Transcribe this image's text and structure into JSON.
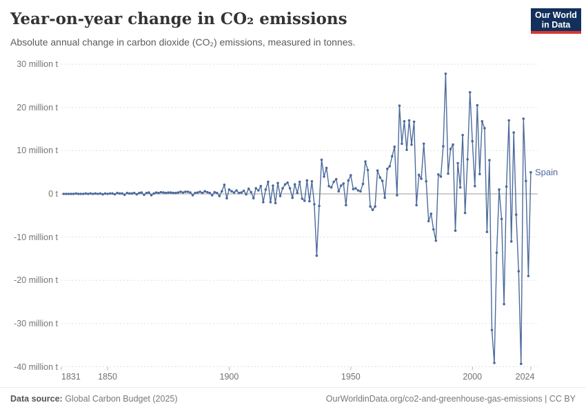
{
  "header": {
    "title": "Year-on-year change in CO₂ emissions",
    "subtitle": "Absolute annual change in carbon dioxide (CO₂) emissions, measured in tonnes.",
    "logo_line1": "Our World",
    "logo_line2": "in Data"
  },
  "footer": {
    "source_label": "Data source:",
    "source_text": " Global Carbon Budget (2025)",
    "link_text": "OurWorldinData.org/co2-and-greenhouse-gas-emissions | CC BY"
  },
  "chart_data": {
    "type": "line",
    "title": "Year-on-year change in CO₂ emissions",
    "entity": "Spain",
    "unit": "tonnes",
    "line_color": "#4c6a9c",
    "grid_color": "#dedede",
    "zero_line_color": "#9e9e9e",
    "legend_position": "right-of-last-point",
    "grid": true,
    "x_label": "",
    "y_label": "",
    "xlim": [
      1831,
      2025
    ],
    "ylim": [
      -40000000,
      30000000
    ],
    "y_ticks": [
      {
        "value": 30,
        "label": "30 million t"
      },
      {
        "value": 20,
        "label": "20 million t"
      },
      {
        "value": 10,
        "label": "10 million t"
      },
      {
        "value": 0,
        "label": "0 t"
      },
      {
        "value": -10,
        "label": "-10 million t"
      },
      {
        "value": -20,
        "label": "-20 million t"
      },
      {
        "value": -30,
        "label": "-30 million t"
      },
      {
        "value": -40,
        "label": "-40 million t"
      }
    ],
    "x_ticks": [
      1831,
      1850,
      1900,
      1950,
      2000,
      2024
    ],
    "series_name": "Spain",
    "values_unit": "million tonnes",
    "start_year": 1832,
    "end_year": 2024,
    "values": [
      0.0,
      0.0,
      0.0,
      0.0,
      0.0,
      0.1,
      0.0,
      0.0,
      0.0,
      0.1,
      0.0,
      0.1,
      0.0,
      0.1,
      0.0,
      0.1,
      -0.1,
      0.1,
      0.0,
      0.1,
      0.1,
      -0.1,
      0.2,
      0.1,
      0.1,
      -0.2,
      0.2,
      0.1,
      0.1,
      0.2,
      -0.1,
      0.2,
      0.3,
      -0.2,
      0.2,
      0.3,
      -0.3,
      0.1,
      0.3,
      0.2,
      0.4,
      0.3,
      0.2,
      0.3,
      0.3,
      0.2,
      0.2,
      0.3,
      0.5,
      0.3,
      0.5,
      0.5,
      0.3,
      -0.3,
      0.2,
      0.3,
      0.5,
      0.2,
      0.6,
      0.4,
      0.2,
      -0.3,
      0.4,
      0.2,
      -0.5,
      0.6,
      2.1,
      -1.0,
      1.0,
      0.6,
      0.3,
      0.8,
      0.2,
      0.3,
      0.7,
      -0.1,
      1.2,
      0.4,
      -1.0,
      1.3,
      0.8,
      1.8,
      -1.9,
      1.0,
      2.8,
      -1.9,
      1.9,
      -2.1,
      2.5,
      -0.5,
      1.3,
      2.2,
      2.6,
      1.3,
      -0.9,
      2.2,
      0.2,
      2.8,
      -1.1,
      -1.6,
      3.1,
      -1.7,
      2.9,
      -2.4,
      -14.3,
      -2.8,
      7.9,
      4.0,
      6.0,
      1.8,
      1.5,
      2.8,
      3.4,
      0.6,
      1.9,
      2.4,
      -2.6,
      3.1,
      4.3,
      1.1,
      1.3,
      0.8,
      0.6,
      2.3,
      7.5,
      5.5,
      -2.9,
      -3.7,
      -2.9,
      5.4,
      3.8,
      3.0,
      -0.9,
      5.8,
      6.4,
      8.7,
      10.9,
      -0.3,
      20.4,
      11.6,
      16.8,
      10.2,
      17.0,
      11.4,
      16.7,
      -2.6,
      4.4,
      3.5,
      11.6,
      2.9,
      -6.3,
      -4.6,
      -8.2,
      -10.8,
      4.5,
      4.0,
      11.0,
      27.8,
      4.7,
      10.4,
      11.4,
      -8.5,
      7.1,
      1.5,
      13.6,
      -4.4,
      8.0,
      23.5,
      12.2,
      1.8,
      20.5,
      4.6,
      16.8,
      15.2,
      -8.8,
      7.8,
      -31.5,
      -39.1,
      -13.6,
      1.0,
      -5.8,
      -25.5,
      1.7,
      17.0,
      -11.0,
      14.2,
      -4.8,
      -17.9,
      -39.3,
      17.4,
      3.0,
      -19.0,
      5.0
    ]
  }
}
